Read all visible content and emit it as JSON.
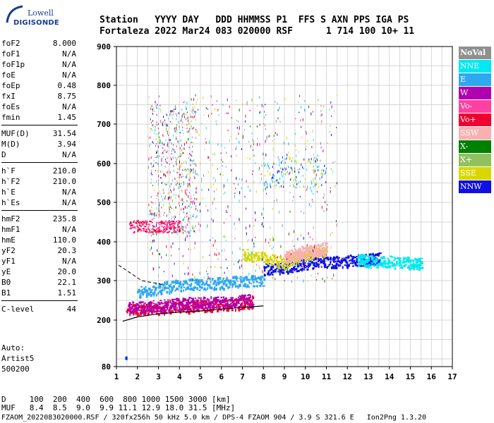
{
  "logo": {
    "line1": "Lowell",
    "line2": "DIGISONDE"
  },
  "header": {
    "line1": "Station   YYYY DAY   DDD HHMMSS P1  FFS S AXN PPS IGA PS",
    "line2": "Fortaleza 2022 Mar24 083 020000 RSF      1 714 100 10+ 11"
  },
  "params": {
    "group1": [
      {
        "k": "foF2",
        "v": "8.000"
      },
      {
        "k": "foF1",
        "v": "N/A"
      },
      {
        "k": "foF1p",
        "v": "N/A"
      },
      {
        "k": "foE",
        "v": "N/A"
      },
      {
        "k": "foEp",
        "v": "0.48"
      },
      {
        "k": "fxI",
        "v": "8.75"
      },
      {
        "k": "foEs",
        "v": "N/A"
      },
      {
        "k": "fmin",
        "v": "1.45"
      }
    ],
    "group2": [
      {
        "k": "MUF(D)",
        "v": "31.54"
      },
      {
        "k": "M(D)",
        "v": "3.94"
      },
      {
        "k": "D",
        "v": "N/A"
      }
    ],
    "group3": [
      {
        "k": "h`F",
        "v": "210.0"
      },
      {
        "k": "h`F2",
        "v": "210.0"
      },
      {
        "k": "h`E",
        "v": "N/A"
      },
      {
        "k": "h`Es",
        "v": "N/A"
      }
    ],
    "group4": [
      {
        "k": "hmF2",
        "v": "235.8"
      },
      {
        "k": "hmF1",
        "v": "N/A"
      },
      {
        "k": "hmE",
        "v": "110.0"
      },
      {
        "k": "yF2",
        "v": "20.3"
      },
      {
        "k": "yF1",
        "v": "N/A"
      },
      {
        "k": "yE",
        "v": "20.0"
      },
      {
        "k": "B0",
        "v": "22.1"
      },
      {
        "k": "B1",
        "v": "1.51"
      }
    ],
    "group5": [
      {
        "k": "C-level",
        "v": "44"
      }
    ]
  },
  "auto": {
    "line1": "Auto:",
    "line2": "Artist5",
    "line3": "500200"
  },
  "legend": [
    {
      "label": "NoVal",
      "color": "#909090"
    },
    {
      "label": "NNE",
      "color": "#00e8f0"
    },
    {
      "label": "E",
      "color": "#2ea8f0"
    },
    {
      "label": "W",
      "color": "#b000b0"
    },
    {
      "label": "Vo-",
      "color": "#ff40a0"
    },
    {
      "label": "Vo+",
      "color": "#f00030"
    },
    {
      "label": "SSW",
      "color": "#f8b0b0"
    },
    {
      "label": "X-",
      "color": "#008000"
    },
    {
      "label": "X+",
      "color": "#90c060"
    },
    {
      "label": "SSE",
      "color": "#d8d800"
    },
    {
      "label": "NNW",
      "color": "#1010e0"
    }
  ],
  "chart_data": {
    "type": "scatter",
    "x_ticks": [
      1,
      2,
      3,
      4,
      5,
      6,
      7,
      8,
      9,
      10,
      11,
      12,
      13,
      14,
      15,
      16,
      17
    ],
    "y_ticks": [
      80,
      200,
      300,
      400,
      500,
      600,
      700,
      800,
      900
    ],
    "xlim": [
      1,
      17
    ],
    "ylim": [
      80,
      900
    ],
    "grid": true,
    "legend_position": "right",
    "curve": {
      "x": [
        1.3,
        2,
        3,
        4,
        5,
        6,
        7,
        8
      ],
      "y": [
        197,
        208,
        216,
        220,
        223,
        228,
        232,
        236
      ]
    },
    "series": [
      {
        "name": "E",
        "points": [
          [
            2,
            270
          ],
          [
            3,
            282
          ],
          [
            4,
            290
          ],
          [
            5,
            292
          ],
          [
            6,
            296
          ],
          [
            7,
            300
          ],
          [
            8,
            300
          ]
        ]
      },
      {
        "name": "Vo+",
        "points": [
          [
            1.5,
            226
          ],
          [
            2.5,
            230
          ],
          [
            3.5,
            234
          ],
          [
            4.5,
            236
          ],
          [
            5.5,
            238
          ],
          [
            6.5,
            242
          ],
          [
            7.5,
            246
          ]
        ]
      },
      {
        "name": "W",
        "points": [
          [
            1.5,
            232
          ],
          [
            2.5,
            236
          ],
          [
            3.5,
            240
          ],
          [
            4.5,
            244
          ],
          [
            5.5,
            246
          ],
          [
            6.5,
            248
          ],
          [
            7.5,
            252
          ]
        ]
      },
      {
        "name": "NNW",
        "points": [
          [
            8,
            330
          ],
          [
            9,
            335
          ],
          [
            10,
            345
          ],
          [
            11,
            350
          ],
          [
            12,
            352
          ],
          [
            13,
            355
          ],
          [
            13.5,
            360
          ]
        ]
      },
      {
        "name": "NNE",
        "points": [
          [
            12.5,
            355
          ],
          [
            13,
            352
          ],
          [
            14,
            350
          ],
          [
            15,
            347
          ],
          [
            15.5,
            345
          ]
        ]
      },
      {
        "name": "SSE",
        "points": [
          [
            7,
            370
          ],
          [
            8,
            360
          ],
          [
            9,
            345
          ],
          [
            10,
            370
          ],
          [
            11,
            380
          ]
        ]
      },
      {
        "name": "SSW",
        "points": [
          [
            9,
            360
          ],
          [
            9.5,
            370
          ],
          [
            10,
            375
          ],
          [
            10.5,
            380
          ],
          [
            11,
            385
          ]
        ]
      }
    ]
  },
  "footer": {
    "line1": "D     100  200  400  600  800 1000 1500 3000 [km]",
    "line2": "MUF   8.4  8.5  9.0  9.9 11.1 12.9 18.0 31.5 [MHz]"
  },
  "bottom_line": "FZAOM_2022083020000.RSF / 320fx256h 50 kHz 5.0 km / DPS-4 FZAOM 904 / 3.9 S 321.6 E   Ion2Png 1.3.20"
}
